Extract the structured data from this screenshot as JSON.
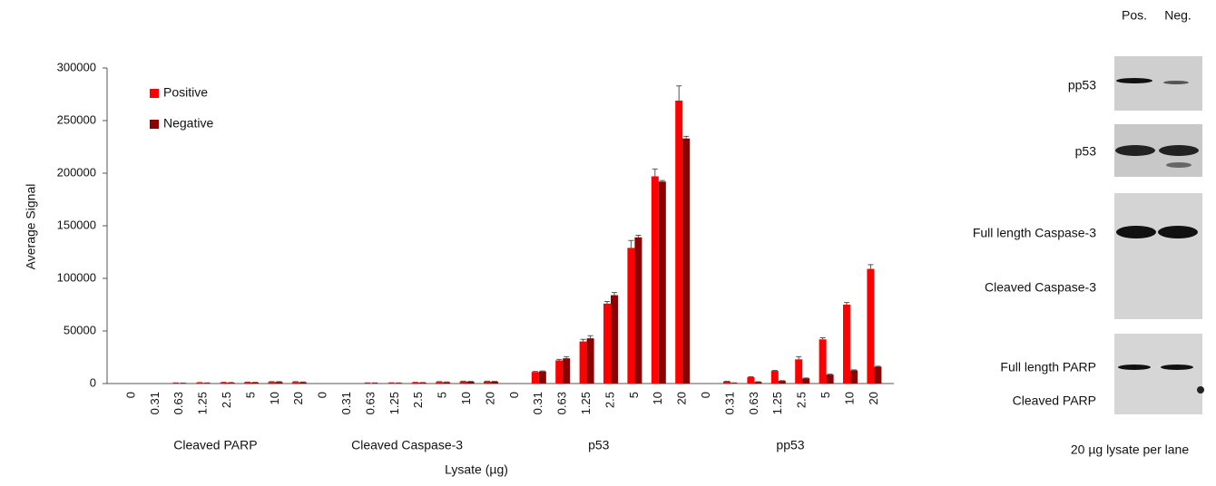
{
  "chart_data": {
    "type": "bar",
    "y_label": "Average Signal",
    "x_label": "Lysate (µg)",
    "categories": [
      "0",
      "0.31",
      "0.63",
      "1.25",
      "2.5",
      "5",
      "10",
      "20",
      "0",
      "0.31",
      "0.63",
      "1.25",
      "2.5",
      "5",
      "10",
      "20",
      "0",
      "0.31",
      "0.63",
      "1.25",
      "2.5",
      "5",
      "10",
      "20",
      "0",
      "0.31",
      "0.63",
      "1.25",
      "2.5",
      "5",
      "10",
      "20"
    ],
    "groups": [
      "Cleaved PARP",
      "Cleaved Caspase-3",
      "p53",
      "pp53"
    ],
    "series": [
      {
        "name": "Positive",
        "color": "#ff0000",
        "values": [
          0,
          0,
          500,
          800,
          1000,
          1200,
          1500,
          1500,
          0,
          0,
          500,
          600,
          1000,
          1500,
          2000,
          2000,
          0,
          11000,
          22000,
          40000,
          76000,
          129000,
          197000,
          269000,
          0,
          2000,
          6000,
          12000,
          23000,
          42000,
          75000,
          109000
        ],
        "errors": [
          0,
          0,
          200,
          200,
          200,
          200,
          300,
          300,
          0,
          0,
          200,
          200,
          200,
          300,
          300,
          300,
          0,
          500,
          1000,
          2000,
          2000,
          7000,
          7000,
          14000,
          0,
          200,
          500,
          500,
          2500,
          1500,
          2000,
          4000
        ]
      },
      {
        "name": "Negative",
        "color": "#8b0000",
        "values": [
          0,
          0,
          300,
          500,
          800,
          1000,
          1500,
          1200,
          0,
          0,
          400,
          500,
          800,
          1200,
          1800,
          1800,
          0,
          11500,
          24000,
          43000,
          84000,
          139000,
          192000,
          233000,
          0,
          500,
          1500,
          2500,
          5000,
          8500,
          12500,
          16000
        ],
        "errors": [
          0,
          0,
          200,
          200,
          200,
          200,
          300,
          300,
          0,
          0,
          200,
          200,
          200,
          300,
          300,
          300,
          0,
          500,
          1500,
          2500,
          2500,
          2000,
          1000,
          2000,
          0,
          200,
          200,
          300,
          300,
          400,
          500,
          500
        ]
      }
    ],
    "ylim": [
      0,
      300000
    ],
    "yticks": [
      0,
      50000,
      100000,
      150000,
      200000,
      250000,
      300000
    ],
    "grid": false,
    "legend": "top-left"
  },
  "blot": {
    "columns": [
      "Pos.",
      "Neg."
    ],
    "labels": [
      "pp53",
      "p53",
      "Full length Caspase-3",
      "Cleaved Caspase-3",
      "Full length PARP",
      "Cleaved PARP"
    ],
    "footer": "20 µg lysate per lane"
  }
}
